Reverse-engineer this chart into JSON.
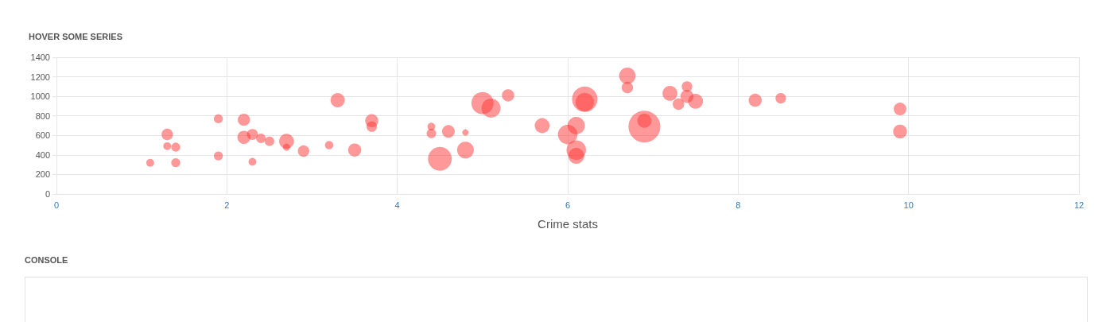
{
  "chart_data": {
    "type": "bubble",
    "title": "HOVER SOME SERIES",
    "xlabel": "Crime stats",
    "annotations": [
      "CONSOLE"
    ],
    "x": [
      1.1,
      1.3,
      1.3,
      1.4,
      1.4,
      1.9,
      1.9,
      2.2,
      2.2,
      2.3,
      2.3,
      2.4,
      2.5,
      2.7,
      2.7,
      2.9,
      3.2,
      3.3,
      3.5,
      3.7,
      3.7,
      4.4,
      4.4,
      4.5,
      4.6,
      4.8,
      4.8,
      5.0,
      5.1,
      5.3,
      5.7,
      6.0,
      6.1,
      6.1,
      6.1,
      6.2,
      6.2,
      6.7,
      6.7,
      6.9,
      6.9,
      7.2,
      7.3,
      7.4,
      7.4,
      7.5,
      8.2,
      8.5,
      9.9,
      9.9
    ],
    "values": [
      320,
      610,
      490,
      480,
      320,
      770,
      390,
      760,
      580,
      610,
      330,
      570,
      540,
      540,
      480,
      440,
      500,
      960,
      450,
      750,
      690,
      690,
      620,
      360,
      640,
      630,
      450,
      930,
      880,
      1010,
      700,
      610,
      700,
      450,
      390,
      970,
      940,
      1210,
      1090,
      690,
      750,
      1030,
      920,
      1100,
      1000,
      950,
      960,
      980,
      870,
      640
    ],
    "sizes": [
      0.06,
      0.13,
      0.06,
      0.08,
      0.08,
      0.08,
      0.08,
      0.15,
      0.17,
      0.12,
      0.06,
      0.09,
      0.09,
      0.22,
      0.05,
      0.13,
      0.07,
      0.2,
      0.17,
      0.17,
      0.11,
      0.06,
      0.09,
      0.56,
      0.16,
      0.04,
      0.28,
      0.49,
      0.36,
      0.15,
      0.22,
      0.38,
      0.3,
      0.38,
      0.25,
      0.64,
      0.34,
      0.27,
      0.13,
      1,
      0.2,
      0.22,
      0.13,
      0.11,
      0.17,
      0.22,
      0.17,
      0.11,
      0.16,
      0.19
    ],
    "color": "#ff3333",
    "xlim": [
      0,
      12
    ],
    "xticks": [
      0,
      2,
      4,
      6,
      8,
      10,
      12
    ],
    "ylim": [
      0,
      1400
    ],
    "yticks": [
      0,
      200,
      400,
      600,
      800,
      1000,
      1200,
      1400
    ],
    "grid": true,
    "marker": "circle"
  }
}
